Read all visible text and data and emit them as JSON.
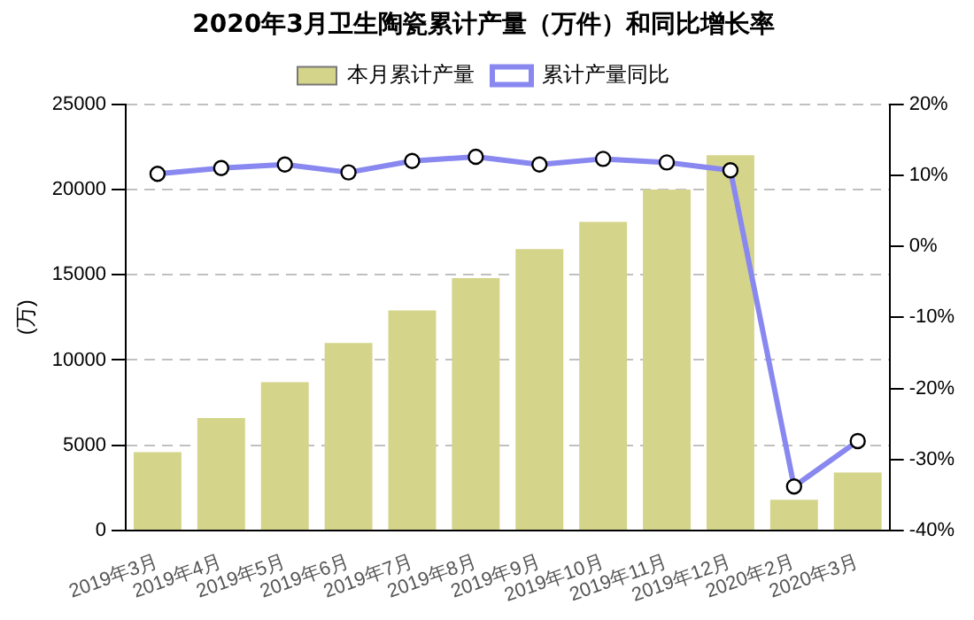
{
  "chart_data": {
    "type": "bar",
    "title": "2020年3月卫生陶瓷累计产量（万件）和同比增长率",
    "ylabel": "(万)",
    "categories": [
      "2019年3月",
      "2019年4月",
      "2019年5月",
      "2019年6月",
      "2019年7月",
      "2019年8月",
      "2019年9月",
      "2019年10月",
      "2019年11月",
      "2019年12月",
      "2020年2月",
      "2020年3月"
    ],
    "series": [
      {
        "name": "本月累计产量",
        "color": "#d4d48a",
        "values": [
          4600,
          6600,
          8700,
          11000,
          12900,
          14800,
          16500,
          18100,
          20000,
          22000,
          1800,
          3400
        ]
      },
      {
        "name": "累计产量同比",
        "type": "line",
        "axis": "y2",
        "color": "#8888f0",
        "values": [
          10.2,
          11.0,
          11.5,
          10.4,
          12.0,
          12.6,
          11.5,
          12.3,
          11.8,
          10.7,
          -33.8,
          -27.4
        ]
      }
    ],
    "ylim": [
      0,
      25000
    ],
    "yticks": [
      0,
      5000,
      10000,
      15000,
      20000,
      25000
    ],
    "y2lim": [
      -40,
      20
    ],
    "y2ticks": [
      {
        "value": -40,
        "label": "-40%"
      },
      {
        "value": -30,
        "label": "-30%"
      },
      {
        "value": -20,
        "label": "-20%"
      },
      {
        "value": -10,
        "label": "-10%"
      },
      {
        "value": 0,
        "label": "0%"
      },
      {
        "value": 10,
        "label": "10%"
      },
      {
        "value": 20,
        "label": "20%"
      }
    ],
    "grid": "y",
    "legend": "top",
    "marker": "circle"
  }
}
